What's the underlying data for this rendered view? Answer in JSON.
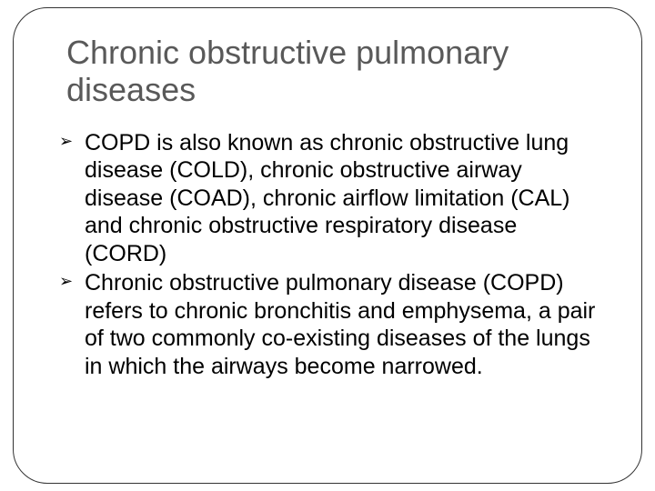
{
  "slide": {
    "title": "Chronic obstructive pulmonary diseases",
    "bullets": [
      "COPD is also known as chronic obstructive lung disease (COLD), chronic obstructive airway disease (COAD), chronic airflow limitation (CAL) and chronic obstructive respiratory disease (CORD)",
      "Chronic obstructive pulmonary disease (COPD) refers to chronic bronchitis and emphysema, a pair of two commonly co-existing diseases of the lungs in which the airways become narrowed."
    ]
  },
  "style": {
    "title_color": "#595959",
    "title_fontsize": 36,
    "body_color": "#000000",
    "body_fontsize": 25,
    "border_color": "#333333",
    "border_radius": 38,
    "background": "#ffffff",
    "bullet_glyph": "➢"
  }
}
